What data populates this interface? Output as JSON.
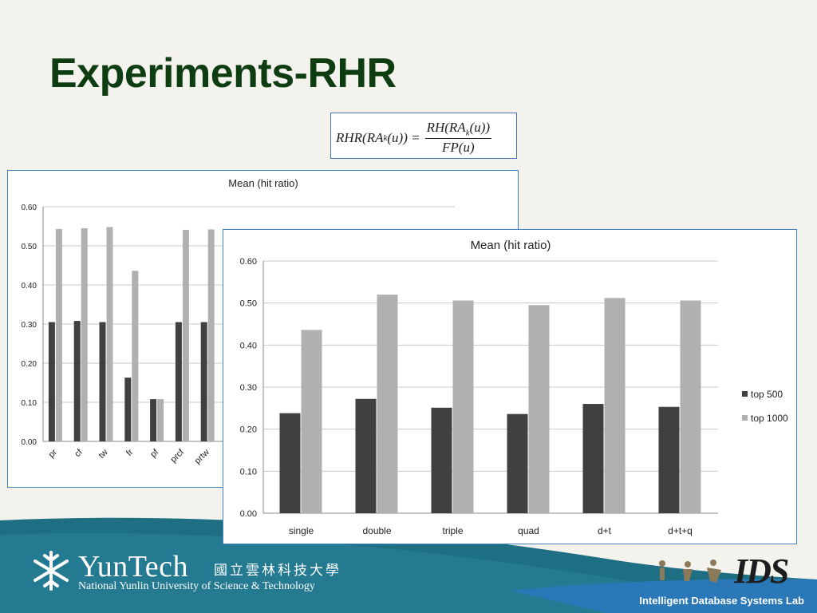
{
  "slide": {
    "title": "Experiments-RHR",
    "formula": {
      "lhs": "RHR(RA",
      "lhs_sub": "k",
      "lhs_tail": "(u)) =",
      "numerator": "RH(RA",
      "numerator_sub": "k",
      "numerator_tail": "(u))",
      "denominator": "FP(u)"
    },
    "footer": {
      "logo_name": "YunTech",
      "logo_cn": "國立雲林科技大學",
      "logo_en": "National Yunlin University of Science & Technology",
      "lab_logo": "IDS",
      "lab_name": "Intelligent Database Systems Lab"
    },
    "colors": {
      "top500": "#404040",
      "top1000": "#b0b0b0",
      "title": "#0f3d12",
      "band": "#1f6f84"
    }
  },
  "chart_data": [
    {
      "type": "bar",
      "title": "Mean (hit ratio)",
      "categories": [
        "pr",
        "cf",
        "tw",
        "fr",
        "pf",
        "prcf",
        "prtw"
      ],
      "series": [
        {
          "values": [
            0.305,
            0.308,
            0.305,
            0.163,
            0.108,
            0.305,
            0.305
          ]
        },
        {
          "values": [
            0.543,
            0.545,
            0.548,
            0.436,
            0.108,
            0.541,
            0.542
          ]
        }
      ],
      "yticks": [
        "0.00",
        "0.10",
        "0.20",
        "0.30",
        "0.40",
        "0.50",
        "0.60"
      ],
      "ylim": [
        0,
        0.6
      ],
      "grid": true
    },
    {
      "type": "bar",
      "title": "Mean (hit ratio)",
      "categories": [
        "single",
        "double",
        "triple",
        "quad",
        "d+t",
        "d+t+q"
      ],
      "series": [
        {
          "name": "top 500",
          "values": [
            0.238,
            0.272,
            0.251,
            0.236,
            0.26,
            0.253
          ]
        },
        {
          "name": "top 1000",
          "values": [
            0.436,
            0.52,
            0.506,
            0.495,
            0.512,
            0.506
          ]
        }
      ],
      "yticks": [
        "0.00",
        "0.10",
        "0.20",
        "0.30",
        "0.40",
        "0.50",
        "0.60"
      ],
      "ylim": [
        0,
        0.6
      ],
      "grid": true,
      "legend": "right"
    }
  ]
}
